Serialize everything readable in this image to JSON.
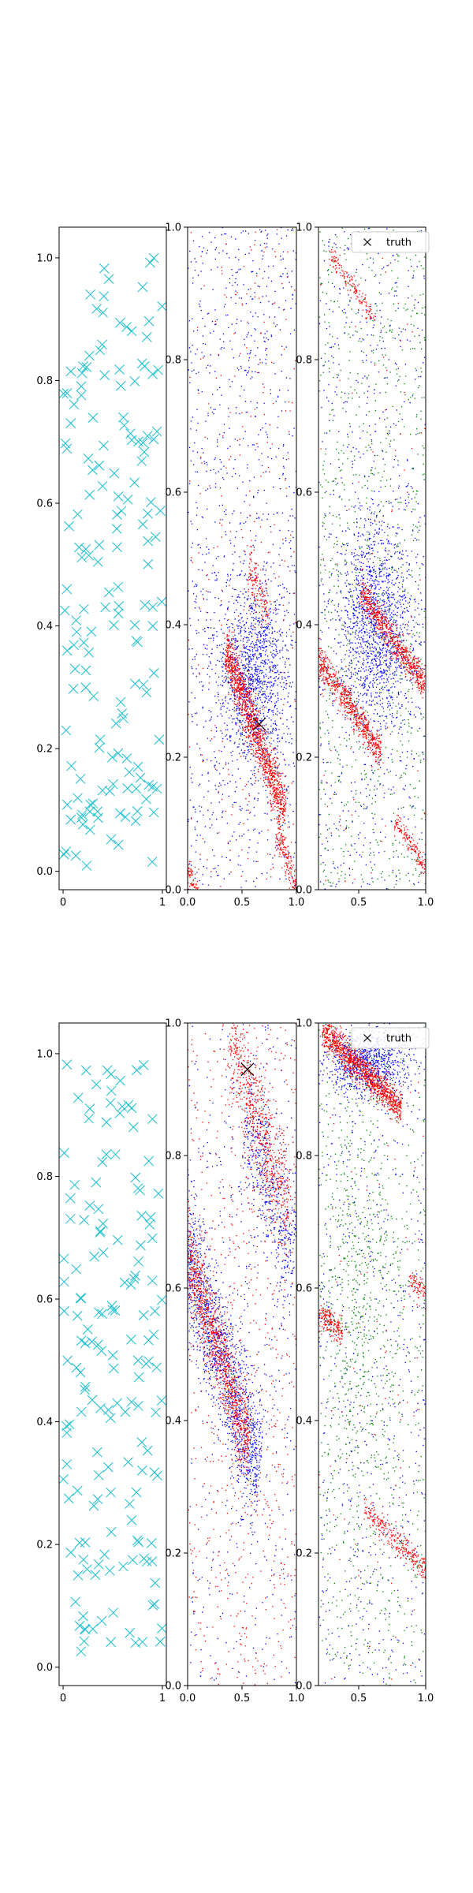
{
  "chart_data": [
    {
      "type": "scatter",
      "panel": "row1-left",
      "xlim": [
        -0.04,
        1.04
      ],
      "ylim": [
        -0.03,
        1.05
      ],
      "xticks": [
        0,
        1
      ],
      "xtick_labels": [
        "0",
        "1"
      ],
      "yticks": [
        0,
        0.2,
        0.4,
        0.6,
        0.8,
        1.0
      ],
      "ytick_labels": [
        "0.0",
        "0.2",
        "0.4",
        "0.6",
        "0.8",
        "1.0"
      ],
      "grid": false,
      "series": [
        {
          "marker": "x",
          "color": "#17BECF",
          "count": 160,
          "distribution": "uniform"
        }
      ]
    },
    {
      "type": "scatter",
      "panel": "row1-middle",
      "xlim": [
        0,
        1
      ],
      "ylim": [
        0,
        1
      ],
      "xticks": [
        0,
        0.5,
        1
      ],
      "xtick_labels": [
        "0.0",
        "0.5",
        "1.0"
      ],
      "yticks": [
        0,
        0.2,
        0.4,
        0.6,
        0.8,
        1.0
      ],
      "ytick_labels": [
        "0.0",
        "0.2",
        "0.4",
        "0.6",
        "0.8",
        "1.0"
      ],
      "grid": false,
      "truth": [
        0.66,
        0.25
      ],
      "series": [
        {
          "color": "#0000FF",
          "uniform": 1100,
          "clusters": [
            {
              "cx": 0.6,
              "cy": 0.32,
              "sx": 0.16,
              "sy": 0.07,
              "n": 1200
            }
          ]
        },
        {
          "color": "#FF0000",
          "uniform": 260,
          "clusters": [
            {
              "cx": 0.62,
              "cy": 0.24,
              "slope": -0.45,
              "half": 0.3,
              "width": 0.02,
              "n": 1300
            },
            {
              "cx": 0.03,
              "cy": 0.01,
              "slope": -0.45,
              "half": 0.1,
              "width": 0.015,
              "n": 200
            },
            {
              "cx": 0.92,
              "cy": 0.04,
              "slope": -0.45,
              "half": 0.12,
              "width": 0.015,
              "n": 200
            },
            {
              "cx": 0.65,
              "cy": 0.45,
              "slope": -0.45,
              "half": 0.1,
              "width": 0.02,
              "n": 150
            }
          ]
        }
      ]
    },
    {
      "type": "scatter",
      "panel": "row1-right",
      "xlim": [
        0.2,
        1
      ],
      "ylim": [
        0,
        1
      ],
      "xticks": [
        0.5,
        1
      ],
      "xtick_labels": [
        "0.5",
        "1.0"
      ],
      "yticks": [
        0,
        0.2,
        0.4,
        0.6,
        0.8,
        1.0
      ],
      "ytick_labels": [
        "0.0",
        "0.2",
        "0.4",
        "0.6",
        "0.8",
        "1.0"
      ],
      "grid": false,
      "legend": {
        "label": "truth",
        "location": "upper right"
      },
      "series": [
        {
          "color": "#008000",
          "uniform": 900,
          "clusters": []
        },
        {
          "color": "#0000FF",
          "uniform": 700,
          "clusters": [
            {
              "cx": 0.62,
              "cy": 0.4,
              "sx": 0.14,
              "sy": 0.08,
              "n": 1400
            }
          ]
        },
        {
          "color": "#FF0000",
          "uniform": 80,
          "clusters": [
            {
              "cx": 0.75,
              "cy": 0.38,
              "slope": -0.3,
              "half": 0.25,
              "width": 0.012,
              "n": 700
            },
            {
              "cx": 0.42,
              "cy": 0.28,
              "slope": -0.3,
              "half": 0.25,
              "width": 0.012,
              "n": 700
            },
            {
              "cx": 0.45,
              "cy": 0.91,
              "slope": -0.3,
              "half": 0.18,
              "width": 0.008,
              "n": 150
            },
            {
              "cx": 0.88,
              "cy": 0.07,
              "slope": -0.3,
              "half": 0.12,
              "width": 0.008,
              "n": 150
            }
          ]
        }
      ]
    },
    {
      "type": "scatter",
      "panel": "row2-left",
      "xlim": [
        -0.04,
        1.04
      ],
      "ylim": [
        -0.03,
        1.05
      ],
      "xticks": [
        0,
        1
      ],
      "xtick_labels": [
        "0",
        "1"
      ],
      "yticks": [
        0,
        0.2,
        0.4,
        0.6,
        0.8,
        1.0
      ],
      "ytick_labels": [
        "0.0",
        "0.2",
        "0.4",
        "0.6",
        "0.8",
        "1.0"
      ],
      "grid": false,
      "series": [
        {
          "marker": "x",
          "color": "#17BECF",
          "count": 160,
          "distribution": "uniform"
        }
      ]
    },
    {
      "type": "scatter",
      "panel": "row2-middle",
      "xlim": [
        0,
        1
      ],
      "ylim": [
        0,
        1
      ],
      "xticks": [
        0,
        0.5,
        1
      ],
      "xtick_labels": [
        "0.0",
        "0.5",
        "1.0"
      ],
      "yticks": [
        0,
        0.2,
        0.4,
        0.6,
        0.8,
        1.0
      ],
      "ytick_labels": [
        "0.0",
        "0.2",
        "0.4",
        "0.6",
        "0.8",
        "1.0"
      ],
      "grid": false,
      "truth": [
        0.55,
        0.93
      ],
      "series": [
        {
          "color": "#0000FF",
          "uniform": 500,
          "clusters": [
            {
              "cx": 0.3,
              "cy": 0.5,
              "slope": -0.5,
              "half": 0.4,
              "width": 0.05,
              "n": 1500
            },
            {
              "cx": 0.75,
              "cy": 0.75,
              "slope": -0.5,
              "half": 0.25,
              "width": 0.05,
              "n": 500
            }
          ]
        },
        {
          "color": "#FF0000",
          "uniform": 700,
          "clusters": [
            {
              "cx": 0.25,
              "cy": 0.52,
              "slope": -0.5,
              "half": 0.35,
              "width": 0.03,
              "n": 1200
            },
            {
              "cx": 0.65,
              "cy": 0.85,
              "slope": -0.5,
              "half": 0.3,
              "width": 0.04,
              "n": 700
            }
          ]
        }
      ]
    },
    {
      "type": "scatter",
      "panel": "row2-right",
      "xlim": [
        0.2,
        1
      ],
      "ylim": [
        0,
        1
      ],
      "xticks": [
        0.5,
        1
      ],
      "xtick_labels": [
        "0.5",
        "1.0"
      ],
      "yticks": [
        0,
        0.2,
        0.4,
        0.6,
        0.8,
        1.0
      ],
      "ytick_labels": [
        "0.0",
        "0.2",
        "0.4",
        "0.6",
        "0.8",
        "1.0"
      ],
      "grid": false,
      "legend": {
        "label": "truth",
        "location": "upper right"
      },
      "series": [
        {
          "color": "#008000",
          "uniform": 700,
          "clusters": [
            {
              "cx": 0.5,
              "cy": 0.6,
              "sx": 0.15,
              "sy": 0.15,
              "n": 500
            }
          ]
        },
        {
          "color": "#0000FF",
          "uniform": 700,
          "clusters": [
            {
              "cx": 0.55,
              "cy": 0.94,
              "sx": 0.15,
              "sy": 0.025,
              "n": 800
            }
          ]
        },
        {
          "color": "#FF0000",
          "uniform": 80,
          "clusters": [
            {
              "cx": 0.52,
              "cy": 0.93,
              "slope": -0.2,
              "half": 0.3,
              "width": 0.012,
              "n": 1200
            },
            {
              "cx": 0.28,
              "cy": 0.55,
              "slope": -0.2,
              "half": 0.1,
              "width": 0.01,
              "n": 200
            },
            {
              "cx": 0.78,
              "cy": 0.22,
              "slope": -0.2,
              "half": 0.25,
              "width": 0.01,
              "n": 300
            },
            {
              "cx": 0.95,
              "cy": 0.6,
              "slope": -0.2,
              "half": 0.08,
              "width": 0.01,
              "n": 100
            }
          ]
        }
      ]
    }
  ]
}
